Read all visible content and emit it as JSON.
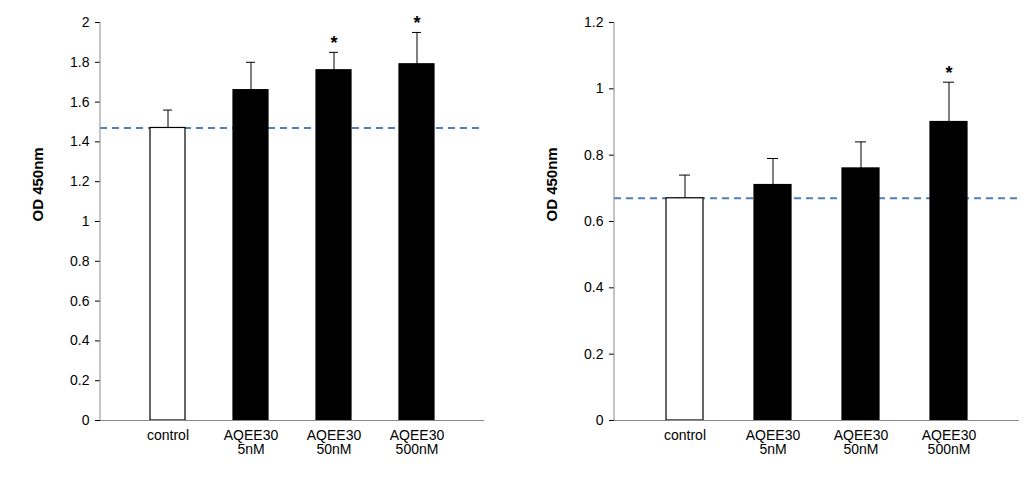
{
  "chart_data": [
    {
      "type": "bar",
      "y_label": "OD 450nm",
      "categories": [
        "control",
        "AQEE30 5nM",
        "AQEE30 50nM",
        "AQEE30 500nM"
      ],
      "values": [
        1.47,
        1.66,
        1.76,
        1.79
      ],
      "errors": [
        0.09,
        0.14,
        0.09,
        0.16
      ],
      "colors": [
        "#ffffff",
        "#000000",
        "#000000",
        "#000000"
      ],
      "annotations": [
        {
          "category": "AQEE30 50nM",
          "text": "*"
        },
        {
          "category": "AQEE30 500nM",
          "text": "*"
        }
      ],
      "ylim": [
        0,
        2
      ],
      "yticks": [
        0,
        0.2,
        0.4,
        0.6,
        0.8,
        1,
        1.2,
        1.4,
        1.6,
        1.8,
        2
      ],
      "grid": false
    },
    {
      "type": "bar",
      "y_label": "OD 450nm",
      "categories": [
        "control",
        "AQEE30 5nM",
        "AQEE30 50nM",
        "AQEE30 500nM"
      ],
      "values": [
        0.67,
        0.71,
        0.76,
        0.9
      ],
      "errors": [
        0.07,
        0.08,
        0.08,
        0.12
      ],
      "colors": [
        "#ffffff",
        "#000000",
        "#000000",
        "#000000"
      ],
      "annotations": [
        {
          "category": "AQEE30 500nM",
          "text": "*"
        }
      ],
      "ylim": [
        0,
        1.2
      ],
      "yticks": [
        0,
        0.2,
        0.4,
        0.6,
        0.8,
        1,
        1.2
      ],
      "grid": false
    }
  ]
}
